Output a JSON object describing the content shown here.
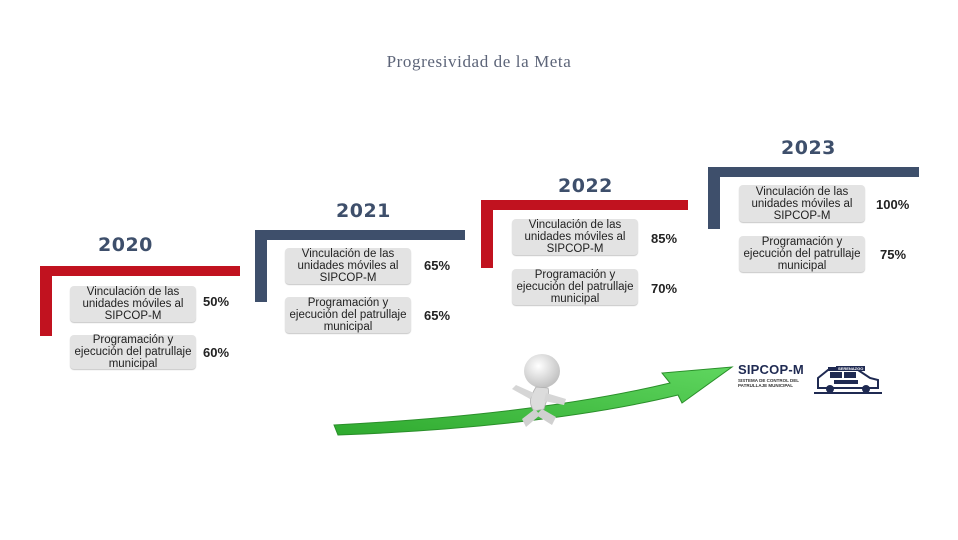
{
  "title": "Progresividad de la Meta",
  "colors": {
    "red": "#c1121f",
    "navy": "#3e4f6b",
    "arrow": "#3ec23e",
    "box": "#e3e3e3"
  },
  "stages": [
    {
      "year": "2020",
      "accent": "red",
      "vinculacion_label": "Vinculación de las unidades móviles al SIPCOP-M",
      "vinculacion_pct": "50%",
      "programacion_label": "Programación y ejecución del patrullaje municipal",
      "programacion_pct": "60%"
    },
    {
      "year": "2021",
      "accent": "navy",
      "vinculacion_label": "Vinculación de las unidades móviles al SIPCOP-M",
      "vinculacion_pct": "65%",
      "programacion_label": "Programación y ejecución del patrullaje municipal",
      "programacion_pct": "65%"
    },
    {
      "year": "2022",
      "accent": "red",
      "vinculacion_label": "Vinculación de las unidades móviles al SIPCOP-M",
      "vinculacion_pct": "85%",
      "programacion_label": "Programación y ejecución del patrullaje municipal",
      "programacion_pct": "70%"
    },
    {
      "year": "2023",
      "accent": "navy",
      "vinculacion_label": "Vinculación de las unidades móviles al SIPCOP-M",
      "vinculacion_pct": "100%",
      "programacion_label": "Programación y ejecución del patrullaje municipal",
      "programacion_pct": "75%"
    }
  ],
  "logo": {
    "name": "SIPCOP-M",
    "subtitle": "SISTEMA DE CONTROL DEL PATRULLAJE MUNICIPAL",
    "badge": "SERENAZGO"
  },
  "illustration": {
    "figure": "running-figure-icon",
    "arrow": "upward-arrow-icon"
  }
}
